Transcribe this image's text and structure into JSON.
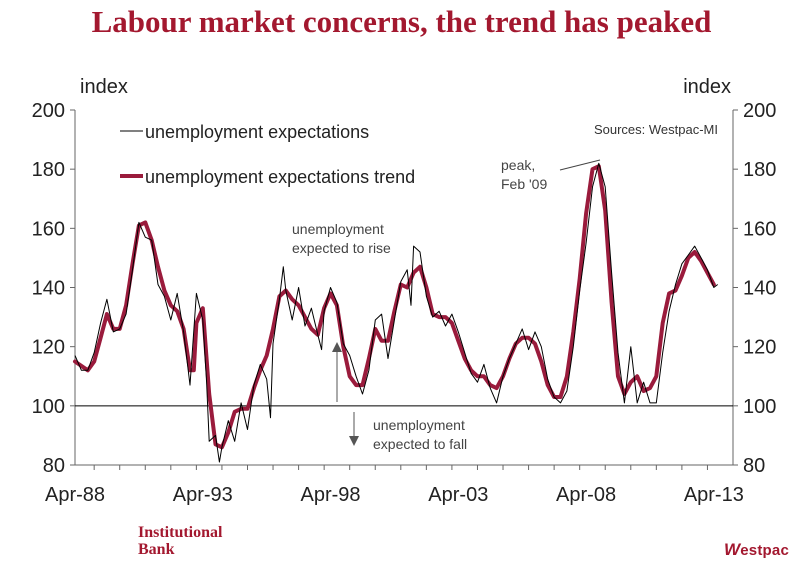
{
  "title": "Labour market concerns, the trend has peaked",
  "footer": {
    "brand_line1": "Institutional",
    "brand_line2": "Bank",
    "logo_text": "estpac",
    "logo_mark": "W"
  },
  "chart_data": {
    "type": "line",
    "title": "Labour market concerns, the trend has peaked",
    "left_axis_title": "index",
    "right_axis_title": "index",
    "ylim": [
      80,
      200
    ],
    "yticks": [
      80,
      100,
      120,
      140,
      160,
      180,
      200
    ],
    "x_tick_labels": [
      "Apr-88",
      "Apr-93",
      "Apr-98",
      "Apr-03",
      "Apr-08",
      "Apr-13"
    ],
    "x_tick_years": [
      1988.25,
      1993.25,
      1998.25,
      2003.25,
      2008.25,
      2013.25
    ],
    "xlim": [
      1988.25,
      2014.0
    ],
    "reference_line": 100,
    "source": "Sources: Westpac-MI",
    "series": [
      {
        "name": "unemployment expectations",
        "color": "#000000",
        "points": [
          [
            1988.25,
            117
          ],
          [
            1988.5,
            112
          ],
          [
            1988.75,
            112
          ],
          [
            1989.0,
            118
          ],
          [
            1989.25,
            128
          ],
          [
            1989.5,
            136
          ],
          [
            1989.75,
            125
          ],
          [
            1990.0,
            126
          ],
          [
            1990.25,
            131
          ],
          [
            1990.5,
            146
          ],
          [
            1990.75,
            162
          ],
          [
            1991.0,
            157
          ],
          [
            1991.25,
            156
          ],
          [
            1991.5,
            141
          ],
          [
            1991.75,
            137
          ],
          [
            1992.0,
            129
          ],
          [
            1992.25,
            138
          ],
          [
            1992.5,
            125
          ],
          [
            1992.75,
            107
          ],
          [
            1993.0,
            138
          ],
          [
            1993.25,
            129
          ],
          [
            1993.4,
            108
          ],
          [
            1993.5,
            88
          ],
          [
            1993.75,
            90
          ],
          [
            1993.9,
            81
          ],
          [
            1994.0,
            86
          ],
          [
            1994.25,
            95
          ],
          [
            1994.5,
            88
          ],
          [
            1994.75,
            101
          ],
          [
            1995.0,
            92
          ],
          [
            1995.25,
            107
          ],
          [
            1995.5,
            114
          ],
          [
            1995.75,
            109
          ],
          [
            1995.9,
            96
          ],
          [
            1996.0,
            121
          ],
          [
            1996.25,
            136
          ],
          [
            1996.4,
            147
          ],
          [
            1996.5,
            139
          ],
          [
            1996.75,
            129
          ],
          [
            1997.0,
            140
          ],
          [
            1997.25,
            127
          ],
          [
            1997.5,
            133
          ],
          [
            1997.75,
            124
          ],
          [
            1997.9,
            119
          ],
          [
            1998.0,
            132
          ],
          [
            1998.25,
            140
          ],
          [
            1998.5,
            135
          ],
          [
            1998.75,
            121
          ],
          [
            1999.0,
            117
          ],
          [
            1999.25,
            110
          ],
          [
            1999.5,
            104
          ],
          [
            1999.75,
            112
          ],
          [
            2000.0,
            129
          ],
          [
            2000.25,
            131
          ],
          [
            2000.5,
            116
          ],
          [
            2000.75,
            129
          ],
          [
            2001.0,
            142
          ],
          [
            2001.25,
            146
          ],
          [
            2001.4,
            134
          ],
          [
            2001.5,
            154
          ],
          [
            2001.75,
            152
          ],
          [
            2002.0,
            137
          ],
          [
            2002.25,
            130
          ],
          [
            2002.5,
            132
          ],
          [
            2002.75,
            127
          ],
          [
            2003.0,
            131
          ],
          [
            2003.25,
            125
          ],
          [
            2003.5,
            118
          ],
          [
            2003.75,
            111
          ],
          [
            2004.0,
            108
          ],
          [
            2004.25,
            114
          ],
          [
            2004.5,
            106
          ],
          [
            2004.75,
            101
          ],
          [
            2005.0,
            110
          ],
          [
            2005.25,
            116
          ],
          [
            2005.5,
            121
          ],
          [
            2005.75,
            126
          ],
          [
            2006.0,
            119
          ],
          [
            2006.25,
            125
          ],
          [
            2006.5,
            120
          ],
          [
            2006.75,
            109
          ],
          [
            2007.0,
            103
          ],
          [
            2007.25,
            101
          ],
          [
            2007.5,
            105
          ],
          [
            2007.75,
            120
          ],
          [
            2008.0,
            139
          ],
          [
            2008.25,
            155
          ],
          [
            2008.5,
            174
          ],
          [
            2008.75,
            182
          ],
          [
            2009.0,
            174
          ],
          [
            2009.25,
            145
          ],
          [
            2009.5,
            118
          ],
          [
            2009.75,
            101
          ],
          [
            2010.0,
            120
          ],
          [
            2010.25,
            101
          ],
          [
            2010.5,
            108
          ],
          [
            2010.75,
            101
          ],
          [
            2011.0,
            101
          ],
          [
            2011.25,
            118
          ],
          [
            2011.5,
            132
          ],
          [
            2011.75,
            141
          ],
          [
            2012.0,
            148
          ],
          [
            2012.25,
            151
          ],
          [
            2012.5,
            154
          ],
          [
            2012.75,
            150
          ],
          [
            2013.0,
            146
          ],
          [
            2013.25,
            140
          ],
          [
            2013.4,
            141
          ]
        ]
      },
      {
        "name": "unemployment expectations trend",
        "color": "#9a1b3c",
        "points": [
          [
            1988.25,
            115
          ],
          [
            1988.75,
            112
          ],
          [
            1989.0,
            115
          ],
          [
            1989.25,
            123
          ],
          [
            1989.5,
            131
          ],
          [
            1989.75,
            126
          ],
          [
            1990.0,
            126
          ],
          [
            1990.25,
            134
          ],
          [
            1990.5,
            148
          ],
          [
            1990.75,
            161
          ],
          [
            1991.0,
            162
          ],
          [
            1991.25,
            156
          ],
          [
            1991.5,
            147
          ],
          [
            1991.75,
            139
          ],
          [
            1992.0,
            134
          ],
          [
            1992.25,
            132
          ],
          [
            1992.5,
            126
          ],
          [
            1992.75,
            112
          ],
          [
            1992.9,
            112
          ],
          [
            1993.0,
            128
          ],
          [
            1993.25,
            133
          ],
          [
            1993.5,
            104
          ],
          [
            1993.75,
            87
          ],
          [
            1994.0,
            86
          ],
          [
            1994.25,
            91
          ],
          [
            1994.5,
            98
          ],
          [
            1994.75,
            99
          ],
          [
            1995.0,
            99
          ],
          [
            1995.25,
            106
          ],
          [
            1995.5,
            112
          ],
          [
            1995.75,
            117
          ],
          [
            1996.0,
            126
          ],
          [
            1996.25,
            137
          ],
          [
            1996.5,
            139
          ],
          [
            1996.75,
            136
          ],
          [
            1997.0,
            134
          ],
          [
            1997.25,
            130
          ],
          [
            1997.5,
            126
          ],
          [
            1997.75,
            124
          ],
          [
            1998.0,
            133
          ],
          [
            1998.25,
            138
          ],
          [
            1998.5,
            134
          ],
          [
            1998.75,
            120
          ],
          [
            1999.0,
            110
          ],
          [
            1999.25,
            107
          ],
          [
            1999.5,
            107
          ],
          [
            1999.75,
            116
          ],
          [
            2000.0,
            126
          ],
          [
            2000.25,
            122
          ],
          [
            2000.5,
            122
          ],
          [
            2000.75,
            132
          ],
          [
            2001.0,
            141
          ],
          [
            2001.25,
            140
          ],
          [
            2001.5,
            145
          ],
          [
            2001.75,
            147
          ],
          [
            2002.0,
            140
          ],
          [
            2002.25,
            131
          ],
          [
            2002.5,
            130
          ],
          [
            2002.75,
            130
          ],
          [
            2003.0,
            128
          ],
          [
            2003.25,
            122
          ],
          [
            2003.5,
            116
          ],
          [
            2003.75,
            112
          ],
          [
            2004.0,
            110
          ],
          [
            2004.25,
            110
          ],
          [
            2004.5,
            107
          ],
          [
            2004.75,
            106
          ],
          [
            2005.0,
            110
          ],
          [
            2005.25,
            116
          ],
          [
            2005.5,
            121
          ],
          [
            2005.75,
            123
          ],
          [
            2006.0,
            123
          ],
          [
            2006.25,
            121
          ],
          [
            2006.5,
            115
          ],
          [
            2006.75,
            107
          ],
          [
            2007.0,
            103
          ],
          [
            2007.25,
            103
          ],
          [
            2007.5,
            110
          ],
          [
            2007.75,
            125
          ],
          [
            2008.0,
            143
          ],
          [
            2008.25,
            165
          ],
          [
            2008.5,
            180
          ],
          [
            2008.75,
            181
          ],
          [
            2009.0,
            166
          ],
          [
            2009.25,
            135
          ],
          [
            2009.5,
            110
          ],
          [
            2009.75,
            104
          ],
          [
            2010.0,
            108
          ],
          [
            2010.25,
            110
          ],
          [
            2010.5,
            105
          ],
          [
            2010.75,
            106
          ],
          [
            2011.0,
            110
          ],
          [
            2011.25,
            128
          ],
          [
            2011.5,
            138
          ],
          [
            2011.75,
            139
          ],
          [
            2012.0,
            144
          ],
          [
            2012.25,
            150
          ],
          [
            2012.5,
            152
          ],
          [
            2012.75,
            149
          ],
          [
            2013.0,
            145
          ],
          [
            2013.25,
            141
          ]
        ]
      }
    ],
    "annotations": [
      {
        "id": "peak",
        "lines": [
          "peak,",
          "Feb '09"
        ]
      },
      {
        "id": "rise",
        "lines": [
          "unemployment",
          "expected to rise"
        ]
      },
      {
        "id": "fall",
        "lines": [
          "unemployment",
          "expected to fall"
        ]
      }
    ]
  }
}
